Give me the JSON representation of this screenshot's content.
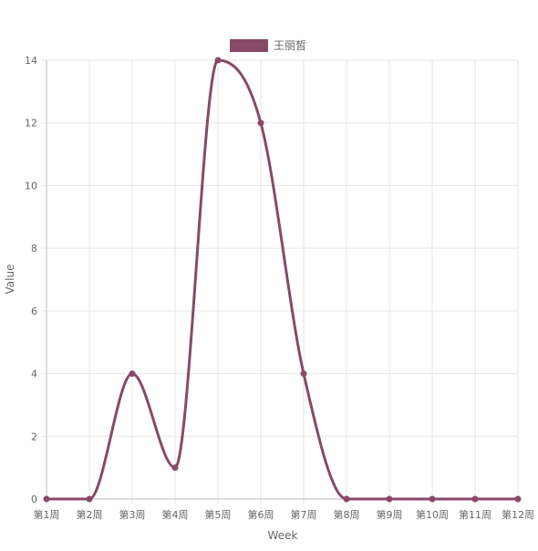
{
  "chart_data": {
    "type": "line",
    "title": "",
    "xlabel": "Week",
    "ylabel": "Value",
    "categories": [
      "第1周",
      "第2周",
      "第3周",
      "第4周",
      "第5周",
      "第6周",
      "第7周",
      "第8周",
      "第9周",
      "第10周",
      "第11周",
      "第12周"
    ],
    "ylim": [
      0,
      14
    ],
    "yticks": [
      0,
      2,
      4,
      6,
      8,
      10,
      12,
      14
    ],
    "grid": true,
    "legend_position": "top-center",
    "smooth": true,
    "series": [
      {
        "name": "王丽皙",
        "color": "#874a67",
        "values": [
          0,
          0,
          4,
          1,
          14,
          12,
          4,
          0,
          0,
          0,
          0,
          0
        ]
      }
    ]
  }
}
